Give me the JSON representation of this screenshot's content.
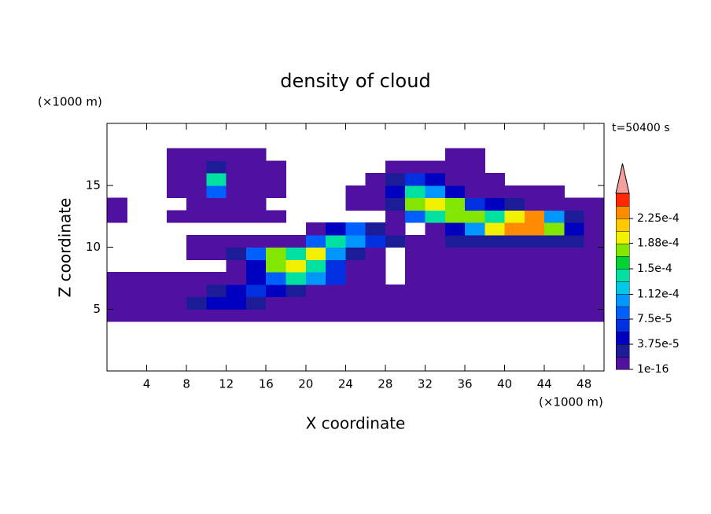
{
  "chart_data": {
    "type": "contour",
    "title": "density of cloud",
    "x_label": "X coordinate",
    "y_label": "Z coordinate",
    "x_unit": "(×1000 m)",
    "y_unit": "(×1000 m)",
    "annotation": "t=50400 s",
    "xlim": [
      0,
      50
    ],
    "ylim": [
      0,
      20
    ],
    "xticks": [
      4,
      8,
      12,
      16,
      20,
      24,
      28,
      32,
      36,
      40,
      44,
      48
    ],
    "yticks": [
      5,
      10,
      15
    ],
    "x": [
      1,
      3,
      5,
      7,
      9,
      11,
      13,
      15,
      17,
      19,
      21,
      23,
      25,
      27,
      29,
      31,
      33,
      35,
      37,
      39,
      41,
      43,
      45,
      47,
      49
    ],
    "y": [
      4.5,
      5.5,
      6.5,
      7.5,
      8.5,
      9.5,
      10.5,
      11.5,
      12.5,
      13.5,
      14.5,
      15.5,
      16.5,
      17.5
    ],
    "values": [
      [
        5e-06,
        5e-06,
        5e-06,
        5e-06,
        5e-06,
        5e-06,
        5e-06,
        5e-06,
        5e-06,
        5e-06,
        5e-06,
        5e-06,
        5e-06,
        5e-06,
        5e-06,
        5e-06,
        5e-06,
        5e-06,
        5e-06,
        5e-06,
        5e-06,
        5e-06,
        5e-06,
        5e-06,
        5e-06
      ],
      [
        5e-06,
        5e-06,
        5e-06,
        5e-06,
        2.5e-05,
        4.5e-05,
        4.5e-05,
        2.5e-05,
        5e-06,
        5e-06,
        5e-06,
        5e-06,
        5e-06,
        5e-06,
        5e-06,
        5e-06,
        5e-06,
        5e-06,
        5e-06,
        5e-06,
        5e-06,
        5e-06,
        5e-06,
        5e-06,
        5e-06
      ],
      [
        5e-06,
        5e-06,
        5e-06,
        5e-06,
        5e-06,
        2.5e-05,
        4.5e-05,
        7e-05,
        4.5e-05,
        2.5e-05,
        5e-06,
        5e-06,
        5e-06,
        5e-06,
        5e-06,
        5e-06,
        5e-06,
        5e-06,
        5e-06,
        5e-06,
        5e-06,
        5e-06,
        5e-06,
        5e-06,
        5e-06
      ],
      [
        5e-06,
        5e-06,
        5e-06,
        5e-06,
        5e-06,
        5e-06,
        5e-06,
        4.5e-05,
        9e-05,
        0.00014,
        0.00011,
        7e-05,
        5e-06,
        5e-06,
        null,
        5e-06,
        5e-06,
        5e-06,
        5e-06,
        5e-06,
        5e-06,
        5e-06,
        5e-06,
        5e-06,
        5e-06
      ],
      [
        null,
        null,
        null,
        null,
        null,
        null,
        5e-06,
        4.5e-05,
        0.00017,
        0.0002,
        0.00014,
        7e-05,
        5e-06,
        5e-06,
        null,
        5e-06,
        5e-06,
        5e-06,
        5e-06,
        5e-06,
        5e-06,
        5e-06,
        5e-06,
        5e-06,
        5e-06
      ],
      [
        null,
        null,
        null,
        null,
        5e-06,
        5e-06,
        2.5e-05,
        9e-05,
        0.00017,
        0.00014,
        0.0002,
        0.00011,
        2.5e-05,
        5e-06,
        null,
        5e-06,
        5e-06,
        5e-06,
        5e-06,
        5e-06,
        5e-06,
        5e-06,
        5e-06,
        5e-06,
        5e-06
      ],
      [
        null,
        null,
        null,
        null,
        5e-06,
        5e-06,
        5e-06,
        5e-06,
        5e-06,
        5e-06,
        9e-05,
        0.00014,
        0.00011,
        7e-05,
        2.5e-05,
        5e-06,
        5e-06,
        2.5e-05,
        2.5e-05,
        2.5e-05,
        2.5e-05,
        2.5e-05,
        2.5e-05,
        2.5e-05,
        5e-06
      ],
      [
        null,
        null,
        null,
        null,
        null,
        null,
        null,
        null,
        null,
        null,
        5e-06,
        4.5e-05,
        9e-05,
        2.5e-05,
        5e-06,
        null,
        5e-06,
        4.5e-05,
        0.00011,
        0.0002,
        0.00024,
        0.00024,
        0.00017,
        4.5e-05,
        5e-06
      ],
      [
        5e-06,
        null,
        null,
        5e-06,
        5e-06,
        5e-06,
        5e-06,
        5e-06,
        5e-06,
        null,
        null,
        null,
        null,
        null,
        5e-06,
        9e-05,
        0.00014,
        0.00017,
        0.00017,
        0.00014,
        0.0002,
        0.00024,
        0.00011,
        2.5e-05,
        5e-06
      ],
      [
        5e-06,
        null,
        null,
        null,
        5e-06,
        5e-06,
        5e-06,
        5e-06,
        null,
        null,
        null,
        null,
        5e-06,
        5e-06,
        2.5e-05,
        0.00017,
        0.0002,
        0.00017,
        7e-05,
        4.5e-05,
        2.5e-05,
        5e-06,
        5e-06,
        5e-06,
        5e-06
      ],
      [
        null,
        null,
        null,
        5e-06,
        5e-06,
        9e-05,
        5e-06,
        5e-06,
        5e-06,
        null,
        null,
        null,
        5e-06,
        5e-06,
        4.5e-05,
        0.00014,
        0.00011,
        4.5e-05,
        5e-06,
        5e-06,
        5e-06,
        5e-06,
        5e-06,
        null,
        null
      ],
      [
        null,
        null,
        null,
        5e-06,
        5e-06,
        0.00014,
        5e-06,
        5e-06,
        5e-06,
        null,
        null,
        null,
        null,
        5e-06,
        2.5e-05,
        7e-05,
        4.5e-05,
        5e-06,
        5e-06,
        5e-06,
        null,
        null,
        null,
        null,
        null
      ],
      [
        null,
        null,
        null,
        5e-06,
        5e-06,
        2.5e-05,
        5e-06,
        5e-06,
        5e-06,
        null,
        null,
        null,
        null,
        null,
        5e-06,
        5e-06,
        5e-06,
        5e-06,
        5e-06,
        null,
        null,
        null,
        null,
        null,
        null
      ],
      [
        null,
        null,
        null,
        5e-06,
        5e-06,
        5e-06,
        5e-06,
        5e-06,
        null,
        null,
        null,
        null,
        null,
        null,
        null,
        null,
        null,
        5e-06,
        5e-06,
        null,
        null,
        null,
        null,
        null,
        null
      ]
    ],
    "colorbar": {
      "levels": [
        1e-16,
        1.875e-05,
        3.75e-05,
        5.625e-05,
        7.5e-05,
        9.375e-05,
        0.0001125,
        0.00013125,
        0.00015,
        0.00016875,
        0.0001875,
        0.00020625,
        0.000225,
        0.00024375,
        0.0002625
      ],
      "colors": [
        "#5010a0",
        "#1c1c96",
        "#0000c0",
        "#0030e0",
        "#0060ff",
        "#0096ff",
        "#00c8e6",
        "#00e0a0",
        "#00d232",
        "#82e600",
        "#f0f000",
        "#ffc800",
        "#ff8c00",
        "#ff2800"
      ],
      "extend_color": "#f4a0a0",
      "ticks": [
        {
          "value": 1e-16,
          "label": "1e-16"
        },
        {
          "value": 3.75e-05,
          "label": "3.75e-5"
        },
        {
          "value": 7.5e-05,
          "label": "7.5e-5"
        },
        {
          "value": 0.000112,
          "label": "1.12e-4"
        },
        {
          "value": 0.00015,
          "label": "1.5e-4"
        },
        {
          "value": 0.000188,
          "label": "1.88e-4"
        },
        {
          "value": 0.000225,
          "label": "2.25e-4"
        }
      ]
    }
  }
}
